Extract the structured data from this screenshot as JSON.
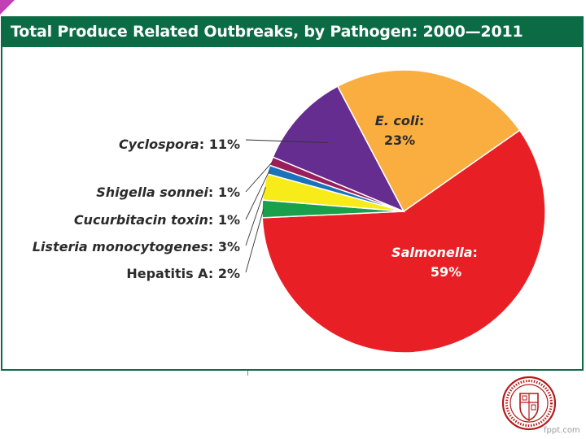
{
  "title": "Total Produce Related Outbreaks, by Pathogen: 2000—2011",
  "colors": {
    "header": "#0b6b45",
    "border": "#0b6b45",
    "accent": "#c23fb6"
  },
  "chart_data": {
    "type": "pie",
    "title": "Total Produce Related Outbreaks, by Pathogen: 2000—2011",
    "slices": [
      {
        "name": "Salmonella",
        "label": "59%",
        "value": 59,
        "color": "#e82026"
      },
      {
        "name": "Hepatitis A",
        "label": "2%",
        "value": 2,
        "color": "#18a04a"
      },
      {
        "name": "Listeria monocytogenes",
        "label": "3%",
        "value": 3,
        "color": "#f7ec1a"
      },
      {
        "name": "Cucurbitacin toxin",
        "label": "1%",
        "value": 1,
        "color": "#1a73ba"
      },
      {
        "name": "Shigella sonnei",
        "label": "1%",
        "value": 1,
        "color": "#9b1e5b"
      },
      {
        "name": "Cyclospora",
        "label": "11%",
        "value": 11,
        "color": "#662d91"
      },
      {
        "name": "E. coli",
        "label": "23%",
        "value": 23,
        "color": "#f9ae3f"
      }
    ]
  },
  "seal_text": "CORNELL UNIVERSITY",
  "watermark": "fppt.com"
}
